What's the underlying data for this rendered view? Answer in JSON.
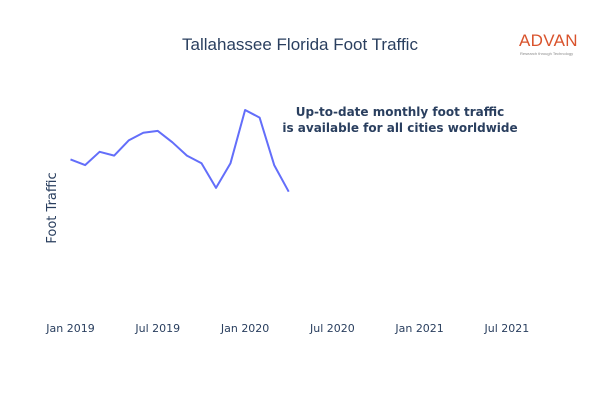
{
  "chart_data": {
    "type": "line",
    "title": "Tallahassee Florida Foot Traffic",
    "ylabel": "Foot Traffic",
    "xlabel": "",
    "xlim": [
      "2018-12-01",
      "2021-09-01"
    ],
    "ylim": [
      0,
      1
    ],
    "x_ticks": [
      "Jan 2019",
      "Jul 2019",
      "Jan 2020",
      "Jul 2020",
      "Jan 2021",
      "Jul 2021"
    ],
    "y_ticks": [],
    "grid": false,
    "legend": "none",
    "line_color": "#636efa",
    "series": [
      {
        "x": [
          "2019-01",
          "2019-02",
          "2019-03",
          "2019-04",
          "2019-05",
          "2019-06",
          "2019-07",
          "2019-08",
          "2019-09",
          "2019-10",
          "2019-11",
          "2019-12",
          "2020-01",
          "2020-02",
          "2020-03",
          "2020-04"
        ],
        "values": [
          0.74,
          0.71,
          0.78,
          0.76,
          0.84,
          0.88,
          0.89,
          0.83,
          0.76,
          0.72,
          0.59,
          0.72,
          1.0,
          0.96,
          0.71,
          0.57
        ]
      }
    ]
  },
  "annotation": {
    "line1": "Up-to-date monthly foot traffic",
    "line2": "is available for all cities worldwide"
  },
  "logo": {
    "wordmark": "ADVAN",
    "tagline": "Research through Technology",
    "color": "#d9532c"
  }
}
